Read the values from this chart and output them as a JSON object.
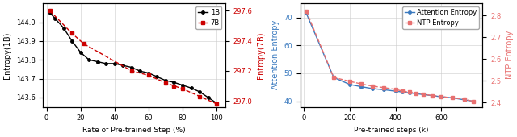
{
  "left": {
    "x_1b": [
      2,
      5,
      10,
      15,
      20,
      25,
      30,
      35,
      40,
      45,
      50,
      55,
      60,
      65,
      70,
      75,
      80,
      85,
      90,
      95,
      100
    ],
    "y_1b": [
      144.05,
      144.02,
      143.97,
      143.9,
      143.84,
      143.8,
      143.79,
      143.78,
      143.78,
      143.77,
      143.76,
      143.74,
      143.73,
      143.71,
      143.69,
      143.68,
      143.665,
      143.65,
      143.63,
      143.6,
      143.57
    ],
    "x_7b": [
      2,
      15,
      22,
      50,
      60,
      70,
      75,
      80,
      90,
      100
    ],
    "y_7b": [
      297.6,
      297.45,
      297.38,
      297.2,
      297.17,
      297.12,
      297.1,
      297.08,
      297.03,
      296.98
    ],
    "xlabel": "Rate of Pre-trained Step (%)",
    "ylabel_left": "Entropy(1B)",
    "ylabel_right": "Entropy(7B)",
    "ylim_left": [
      143.55,
      144.1
    ],
    "ylim_right": [
      296.96,
      297.65
    ],
    "yticks_left": [
      143.6,
      143.7,
      143.8,
      143.9,
      144.0
    ],
    "yticks_right": [
      297.0,
      297.2,
      297.4,
      297.6
    ],
    "xticks": [
      0,
      20,
      40,
      60,
      80,
      100
    ],
    "color_1b": "#000000",
    "color_7b": "#cc0000",
    "legend_labels": [
      "1B",
      "7B"
    ]
  },
  "right": {
    "x_attn": [
      10,
      130,
      200,
      250,
      300,
      350,
      400,
      430,
      460,
      490,
      520,
      560,
      600,
      650,
      700,
      740
    ],
    "y_attn": [
      71.5,
      48.5,
      46.0,
      45.2,
      44.5,
      44.1,
      43.6,
      43.3,
      43.0,
      42.7,
      42.4,
      42.0,
      41.6,
      41.2,
      40.5,
      40.0
    ],
    "x_ntp": [
      10,
      130,
      200,
      250,
      300,
      350,
      400,
      430,
      460,
      490,
      520,
      560,
      600,
      650,
      700,
      740
    ],
    "y_ntp": [
      2.82,
      2.515,
      2.497,
      2.485,
      2.475,
      2.468,
      2.46,
      2.452,
      2.447,
      2.443,
      2.438,
      2.432,
      2.427,
      2.421,
      2.415,
      2.405
    ],
    "xlabel": "Pre-trained steps (k)",
    "ylabel_left": "Attention Entropy",
    "ylabel_right": "NTP Entropy",
    "ylim_left": [
      38,
      75
    ],
    "ylim_right": [
      2.38,
      2.855
    ],
    "yticks_left": [
      40,
      50,
      60,
      70
    ],
    "yticks_right": [
      2.4,
      2.5,
      2.6,
      2.7,
      2.8
    ],
    "xticks": [
      0,
      200,
      400,
      600
    ],
    "color_attn": "#3a7abf",
    "color_ntp": "#e87070",
    "legend_labels": [
      "Attention Entropy",
      "NTP Entropy"
    ]
  },
  "figsize": [
    6.4,
    1.7
  ],
  "dpi": 100
}
